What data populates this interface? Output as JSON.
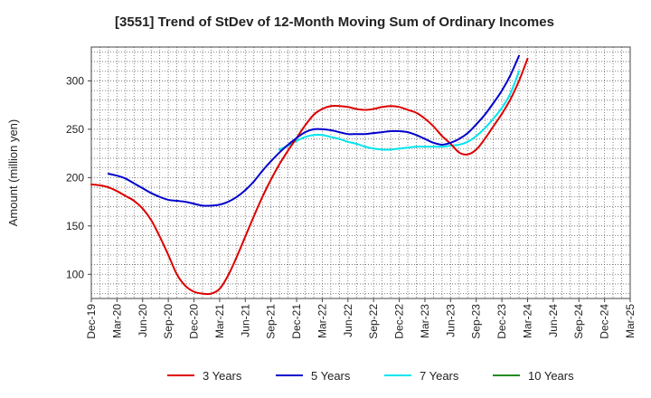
{
  "chart_data": {
    "type": "line",
    "title": "[3551]  Trend of StDev of 12-Month Moving Sum of Ordinary Incomes",
    "xlabel": "",
    "ylabel": "Amount (million yen)",
    "ylim": [
      75,
      335
    ],
    "yticks": [
      100,
      150,
      200,
      250,
      300
    ],
    "xlim": [
      0,
      63
    ],
    "xtick_labels": [
      "Dec-19",
      "Mar-20",
      "Jun-20",
      "Sep-20",
      "Dec-20",
      "Mar-21",
      "Jun-21",
      "Sep-21",
      "Dec-21",
      "Mar-22",
      "Jun-22",
      "Sep-22",
      "Dec-22",
      "Mar-23",
      "Jun-23",
      "Sep-23",
      "Dec-23",
      "Mar-24",
      "Jun-24",
      "Sep-24",
      "Dec-24",
      "Mar-25"
    ],
    "xtick_positions": [
      0,
      3,
      6,
      9,
      12,
      15,
      18,
      21,
      24,
      27,
      30,
      33,
      36,
      39,
      42,
      45,
      48,
      51,
      54,
      57,
      60,
      63
    ],
    "grid": true,
    "series": [
      {
        "name": "3 Years",
        "color": "#dd0000",
        "points": [
          [
            0,
            193
          ],
          [
            1,
            192
          ],
          [
            2,
            190
          ],
          [
            3,
            186
          ],
          [
            4,
            181
          ],
          [
            5,
            176
          ],
          [
            6,
            168
          ],
          [
            7,
            156
          ],
          [
            8,
            139
          ],
          [
            9,
            120
          ],
          [
            10,
            100
          ],
          [
            11,
            88
          ],
          [
            12,
            82
          ],
          [
            13,
            80
          ],
          [
            14,
            80
          ],
          [
            15,
            85
          ],
          [
            16,
            99
          ],
          [
            17,
            118
          ],
          [
            18,
            139
          ],
          [
            19,
            160
          ],
          [
            20,
            180
          ],
          [
            21,
            198
          ],
          [
            22,
            214
          ],
          [
            23,
            228
          ],
          [
            24,
            241
          ],
          [
            25,
            254
          ],
          [
            26,
            265
          ],
          [
            27,
            271
          ],
          [
            28,
            274
          ],
          [
            29,
            274
          ],
          [
            30,
            273
          ],
          [
            31,
            271
          ],
          [
            32,
            270
          ],
          [
            33,
            271
          ],
          [
            34,
            273
          ],
          [
            35,
            274
          ],
          [
            36,
            273
          ],
          [
            37,
            270
          ],
          [
            38,
            267
          ],
          [
            39,
            261
          ],
          [
            40,
            253
          ],
          [
            41,
            243
          ],
          [
            42,
            235
          ],
          [
            43,
            226
          ],
          [
            44,
            224
          ],
          [
            45,
            229
          ],
          [
            46,
            240
          ],
          [
            47,
            253
          ],
          [
            48,
            266
          ],
          [
            49,
            281
          ],
          [
            50,
            300
          ],
          [
            51,
            323
          ]
        ]
      },
      {
        "name": "5 Years",
        "color": "#0000cc",
        "points": [
          [
            2,
            204
          ],
          [
            3,
            202
          ],
          [
            4,
            199
          ],
          [
            5,
            194
          ],
          [
            6,
            189
          ],
          [
            7,
            184
          ],
          [
            8,
            180
          ],
          [
            9,
            177
          ],
          [
            10,
            176
          ],
          [
            11,
            175
          ],
          [
            12,
            173
          ],
          [
            13,
            171
          ],
          [
            14,
            171
          ],
          [
            15,
            172
          ],
          [
            16,
            175
          ],
          [
            17,
            180
          ],
          [
            18,
            187
          ],
          [
            19,
            196
          ],
          [
            20,
            207
          ],
          [
            21,
            217
          ],
          [
            22,
            226
          ],
          [
            23,
            234
          ],
          [
            24,
            241
          ],
          [
            25,
            247
          ],
          [
            26,
            250
          ],
          [
            27,
            250
          ],
          [
            28,
            249
          ],
          [
            29,
            247
          ],
          [
            30,
            245
          ],
          [
            31,
            245
          ],
          [
            32,
            245
          ],
          [
            33,
            246
          ],
          [
            34,
            247
          ],
          [
            35,
            248
          ],
          [
            36,
            248
          ],
          [
            37,
            247
          ],
          [
            38,
            244
          ],
          [
            39,
            240
          ],
          [
            40,
            236
          ],
          [
            41,
            234
          ],
          [
            42,
            236
          ],
          [
            43,
            240
          ],
          [
            44,
            246
          ],
          [
            45,
            255
          ],
          [
            46,
            265
          ],
          [
            47,
            277
          ],
          [
            48,
            290
          ],
          [
            49,
            306
          ],
          [
            50,
            326
          ]
        ]
      },
      {
        "name": "7 Years",
        "color": "#00e5ee",
        "points": [
          [
            22,
            229
          ],
          [
            23,
            233
          ],
          [
            24,
            238
          ],
          [
            25,
            242
          ],
          [
            26,
            244
          ],
          [
            27,
            244
          ],
          [
            28,
            242
          ],
          [
            29,
            240
          ],
          [
            30,
            237
          ],
          [
            31,
            235
          ],
          [
            32,
            232
          ],
          [
            33,
            230
          ],
          [
            34,
            229
          ],
          [
            35,
            229
          ],
          [
            36,
            230
          ],
          [
            37,
            231
          ],
          [
            38,
            232
          ],
          [
            39,
            232
          ],
          [
            40,
            232
          ],
          [
            41,
            232
          ],
          [
            42,
            233
          ],
          [
            43,
            234
          ],
          [
            44,
            237
          ],
          [
            45,
            243
          ],
          [
            46,
            251
          ],
          [
            47,
            261
          ],
          [
            48,
            272
          ],
          [
            49,
            287
          ],
          [
            50,
            310
          ]
        ]
      },
      {
        "name": "10 Years",
        "color": "#228b22",
        "points": []
      }
    ],
    "legend_position": "bottom"
  }
}
